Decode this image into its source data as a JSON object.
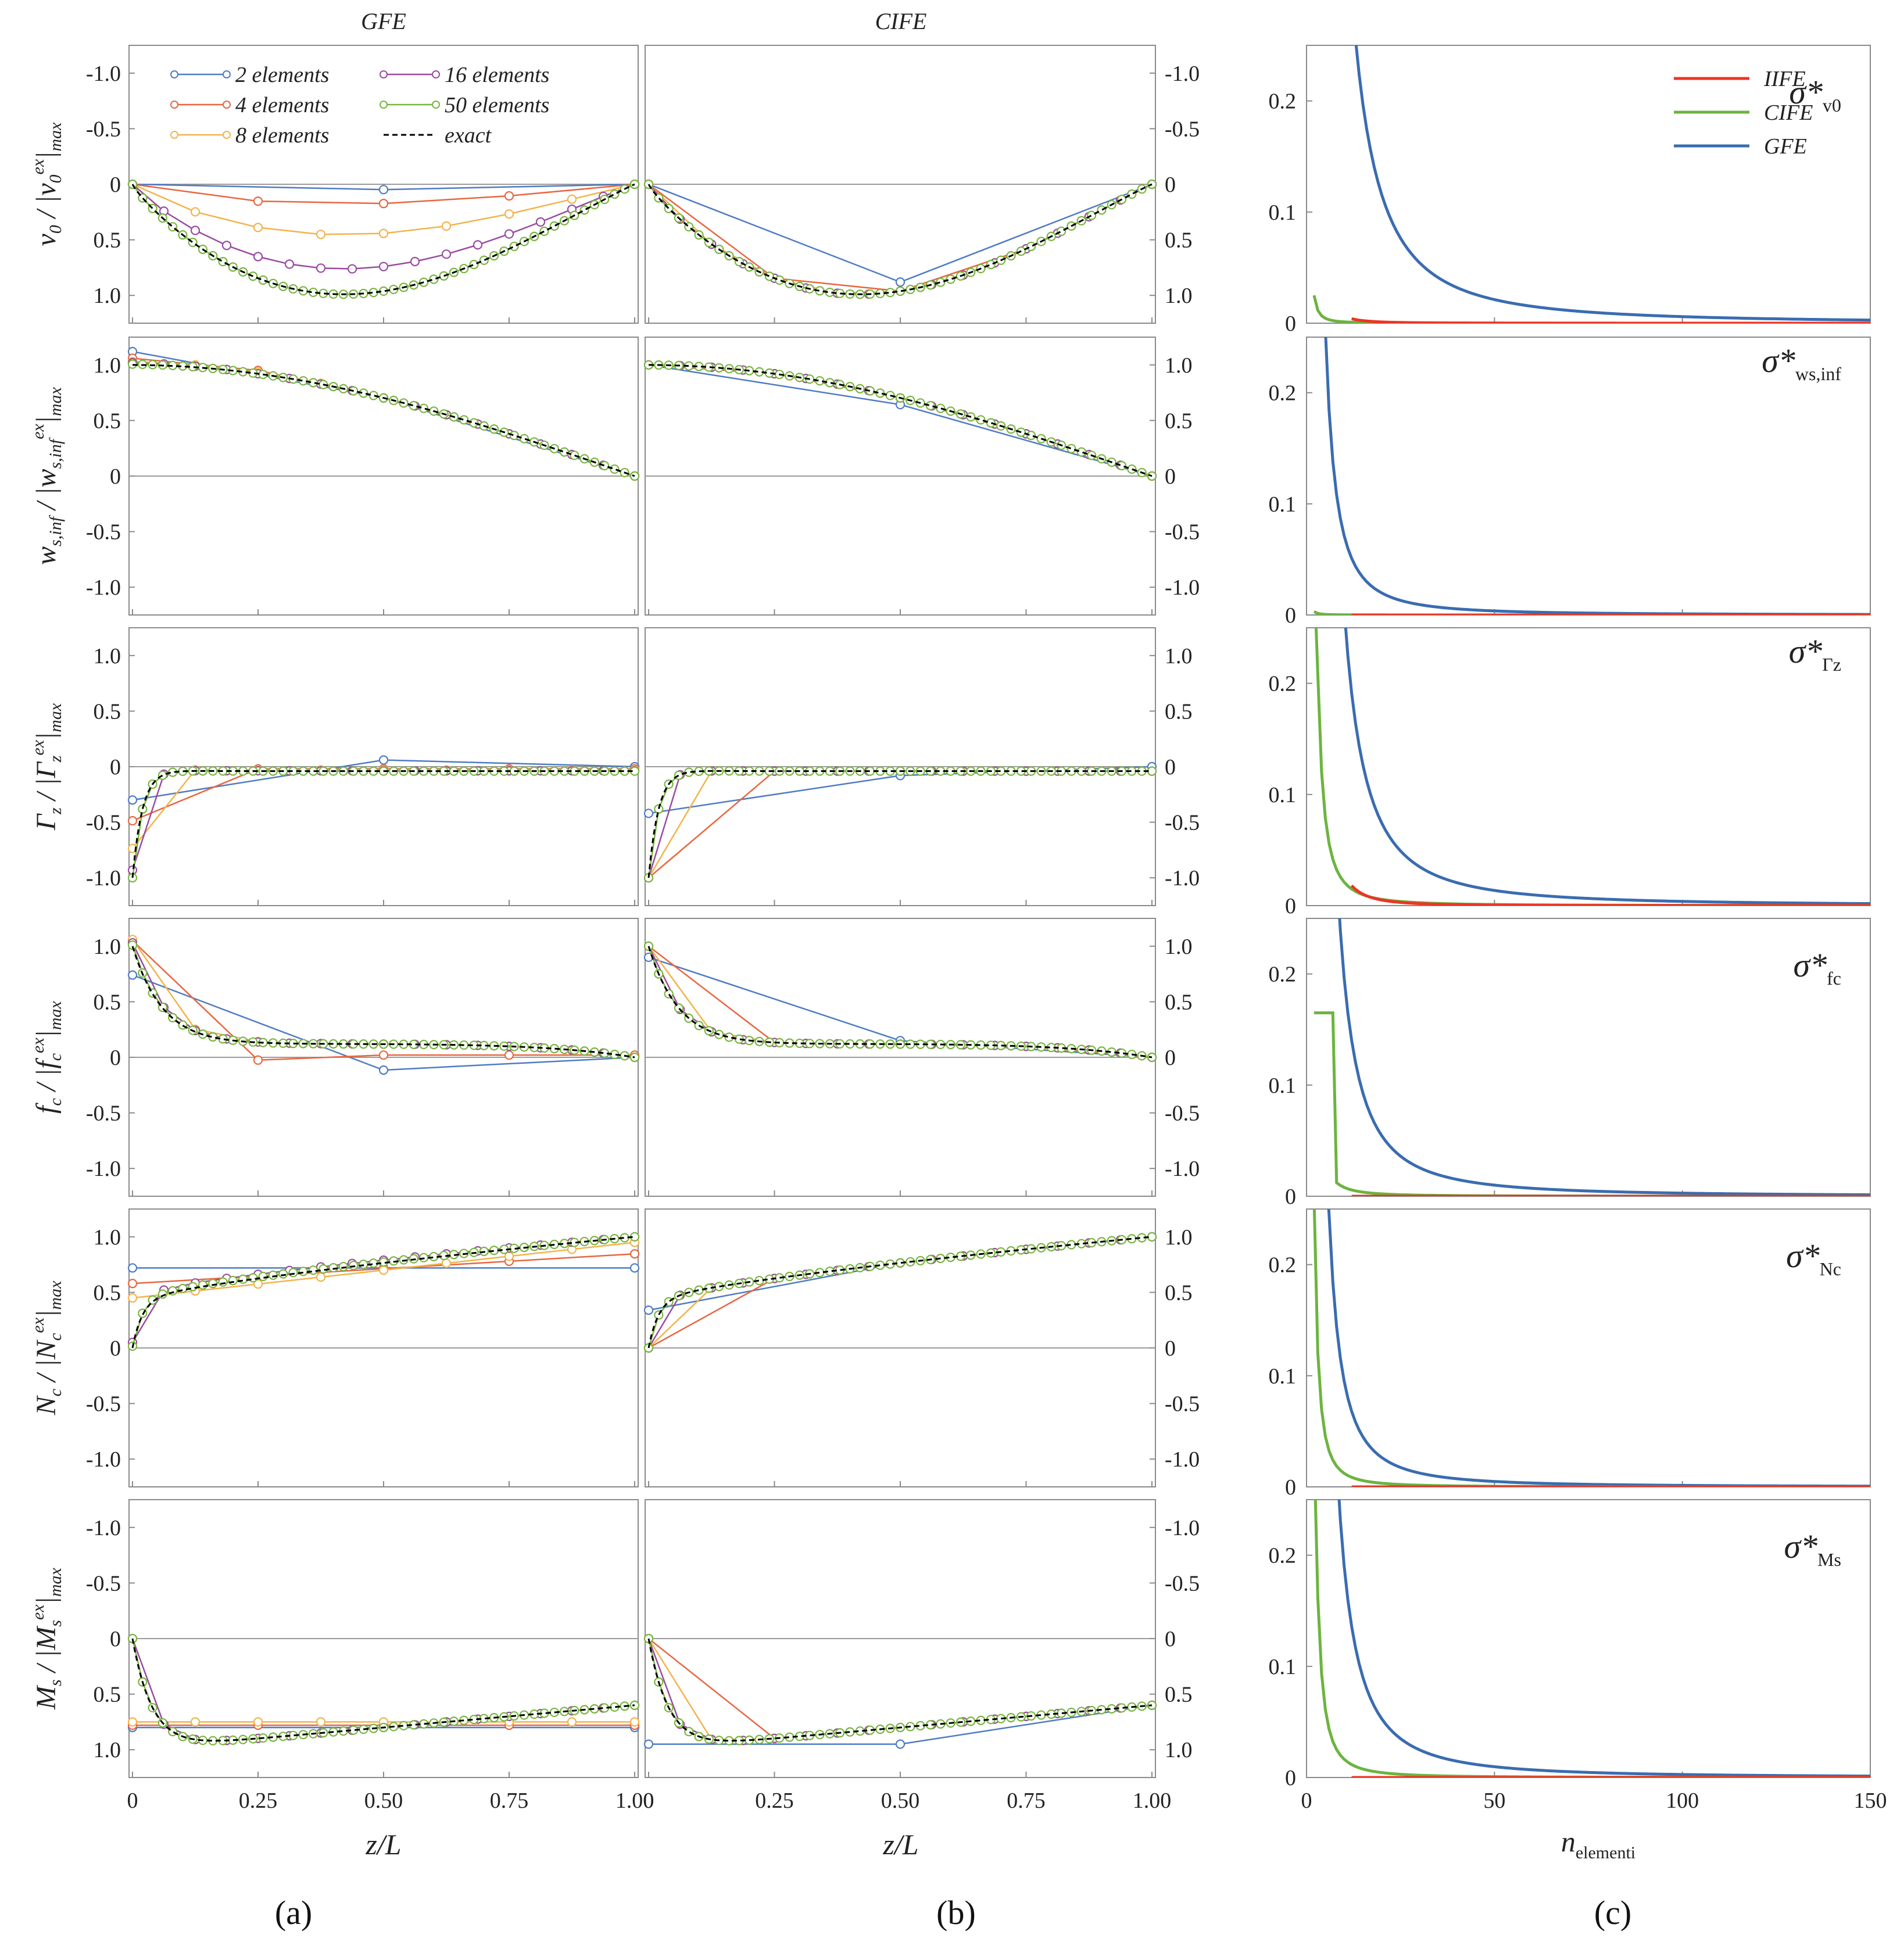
{
  "figure": {
    "column_titles": {
      "gfe": "GFE",
      "cife": "CIFE"
    },
    "panel_labels": [
      "(a)",
      "(b)",
      "(c)"
    ],
    "x_axis_label_ab": "z/L",
    "x_axis_label_c_main": "n",
    "x_axis_label_c_sub": "elementi"
  },
  "colors": {
    "e2": "#4e7bc4",
    "e4": "#e8663f",
    "e8": "#f3b34a",
    "e16": "#9a4aa0",
    "e50": "#79b540",
    "exact": "#000000",
    "IIFE": "#ee3424",
    "CIFE": "#6cb43f",
    "GFE": "#3a6cb0",
    "axis": "#8a8a8a",
    "text": "#222222"
  },
  "legend_ab": {
    "entries": [
      {
        "key": "e2",
        "label": "2 elements"
      },
      {
        "key": "e4",
        "label": "4 elements"
      },
      {
        "key": "e8",
        "label": "8 elements"
      },
      {
        "key": "e16",
        "label": "16 elements"
      },
      {
        "key": "e50",
        "label": "50 elements"
      },
      {
        "key": "exact",
        "label": "exact"
      }
    ]
  },
  "legend_c": {
    "entries": [
      {
        "key": "IIFE",
        "label": "IIFE"
      },
      {
        "key": "CIFE",
        "label": "CIFE"
      },
      {
        "key": "GFE",
        "label": "GFE"
      }
    ]
  },
  "chart_data": [
    {
      "type": "line",
      "rows": 6,
      "columns": [
        "GFE",
        "CIFE"
      ],
      "x": "z/L",
      "xlim": [
        0,
        1
      ],
      "xticks": [
        "0",
        "0.25",
        "0.50",
        "0.75",
        "1.00"
      ],
      "row_quantities": [
        {
          "sym": "v",
          "sub": "0",
          "supnum": "ex",
          "inverted": true,
          "yticks_inv": [
            "-1.0",
            "-0.5",
            "0",
            "0.5",
            "1.0"
          ]
        },
        {
          "sym": "w",
          "sub": "s,inf",
          "inverted": false,
          "yticks": [
            "1.0",
            "0.5",
            "0",
            "-0.5",
            "-1.0"
          ]
        },
        {
          "sym": "Γ",
          "sub": "z",
          "inverted": false,
          "yticks": [
            "1.0",
            "0.5",
            "0",
            "-0.5",
            "-1.0"
          ]
        },
        {
          "sym": "f",
          "sub": "c",
          "inverted": false,
          "yticks": [
            "1.0",
            "0.5",
            "0",
            "-0.5",
            "-1.0"
          ]
        },
        {
          "sym": "N",
          "sub": "c",
          "inverted": false,
          "yticks": [
            "1.0",
            "0.5",
            "0",
            "-0.5",
            "-1.0"
          ]
        },
        {
          "sym": "M",
          "sub": "s",
          "inverted": true,
          "yticks_inv": [
            "-1.0",
            "-0.5",
            "0",
            "0.5",
            "1.0"
          ]
        }
      ],
      "ylabel_template": "{sym}/|{sym}^ex|max",
      "description": "Normalized displacement/force profiles along the beam for 2, 4, 8, 16 and 50 elements and the exact solution."
    },
    {
      "type": "line",
      "x": "n_elementi",
      "xlim": [
        0,
        150
      ],
      "ylim": [
        0,
        0.25
      ],
      "xticks": [
        "0",
        "50",
        "100",
        "150"
      ],
      "yticks": [
        "0",
        "0.1",
        "0.2"
      ],
      "panel_titles": [
        {
          "main": "σ*",
          "sub": "v0"
        },
        {
          "main": "σ*",
          "sub": "ws,inf"
        },
        {
          "main": "σ*",
          "sub": "Γz"
        },
        {
          "main": "σ*",
          "sub": "fc"
        },
        {
          "main": "σ*",
          "sub": "Nc"
        },
        {
          "main": "σ*",
          "sub": "Ms"
        }
      ],
      "series_names": [
        "IIFE",
        "CIFE",
        "GFE"
      ],
      "gfe_amplitude": [
        0.7,
        0.12,
        0.45,
        0.33,
        0.16,
        0.32
      ],
      "cife_amplitude": [
        0.025,
        0.003,
        0.45,
        0.17,
        0.26,
        0.35
      ],
      "iife_amplitude": [
        0.004,
        0.0,
        0.018,
        0.0,
        0.0,
        0.0
      ]
    }
  ]
}
